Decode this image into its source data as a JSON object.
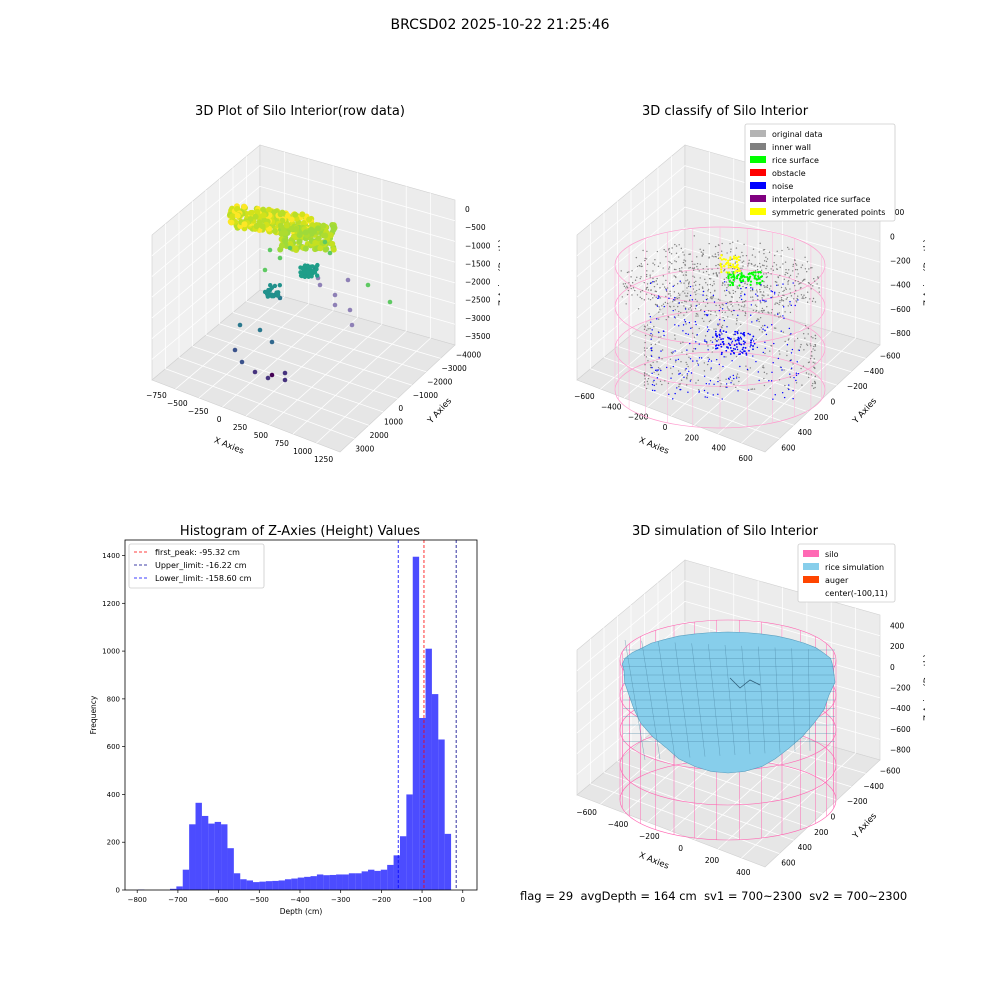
{
  "figure": {
    "suptitle": "BRCSD02 2025-10-22 21:25:46",
    "footer": {
      "flag": "flag = 29",
      "avg_depth": "avgDepth = 164 cm",
      "sv1": "sv1 = 700~2300",
      "sv2": "sv2 = 700~2300"
    }
  },
  "chart_data": [
    {
      "type": "scatter",
      "projection": "3d",
      "title": "3D Plot of Silo Interior(row data)",
      "xlabel": "X Axies",
      "ylabel": "Y Axies",
      "zlabel": "Z Axies (Depth)",
      "x_ticks": [
        "−750",
        "−500",
        "−250",
        "0",
        "250",
        "500",
        "750",
        "1000",
        "1250"
      ],
      "y_ticks": [
        "−4000",
        "−3000",
        "−2000",
        "−1000",
        "0",
        "1000",
        "2000",
        "3000"
      ],
      "z_ticks": [
        "0",
        "−500",
        "−1000",
        "−1500",
        "−2000",
        "−2500",
        "−3000",
        "−3500"
      ],
      "colormap": "viridis"
    },
    {
      "type": "scatter",
      "projection": "3d",
      "title": "3D classify of Silo Interior",
      "xlabel": "X Axies",
      "ylabel": "Y Axies",
      "zlabel": "Z Axies (Depth)",
      "x_ticks": [
        "−600",
        "−400",
        "−200",
        "0",
        "200",
        "400",
        "600"
      ],
      "y_ticks": [
        "−600",
        "−400",
        "−200",
        "0",
        "200",
        "400",
        "600"
      ],
      "z_ticks": [
        "200",
        "0",
        "−200",
        "−400",
        "−600",
        "−800"
      ],
      "legend_position": "top-right",
      "legend": [
        {
          "name": "original data",
          "color": "#b4b4b4"
        },
        {
          "name": "inner wall",
          "color": "#808080"
        },
        {
          "name": "rice surface",
          "color": "#00ff00"
        },
        {
          "name": "obstacle",
          "color": "#ff0000"
        },
        {
          "name": "noise",
          "color": "#0000ff"
        },
        {
          "name": "interpolated rice surface",
          "color": "#800080"
        },
        {
          "name": "symmetric generated points",
          "color": "#ffff00"
        }
      ]
    },
    {
      "type": "bar",
      "title": "Histogram of Z-Axies (Height) Values",
      "xlabel": "Depth (cm)",
      "ylabel": "Frequency",
      "xlim": [
        -830,
        35
      ],
      "ylim": [
        0,
        1465
      ],
      "x_ticks": [
        -800,
        -700,
        -600,
        -500,
        -400,
        -300,
        -200,
        -100,
        0
      ],
      "y_ticks": [
        0,
        200,
        400,
        600,
        800,
        1000,
        1200,
        1400
      ],
      "bin_width": 15.7,
      "bin_start": -798,
      "bar_color": "#0000ff",
      "values": [
        2,
        0,
        0,
        0,
        0,
        5,
        15,
        85,
        275,
        365,
        310,
        278,
        285,
        275,
        175,
        70,
        45,
        40,
        33,
        35,
        37,
        38,
        40,
        45,
        48,
        52,
        55,
        58,
        65,
        62,
        63,
        65,
        65,
        70,
        70,
        78,
        85,
        80,
        85,
        105,
        145,
        225,
        400,
        1395,
        720,
        1010,
        820,
        630,
        235
      ],
      "lines": [
        {
          "label": "first_peak: -95.32 cm",
          "x": -95.32,
          "color": "#ff0000"
        },
        {
          "label": "Upper_limit: -16.22 cm",
          "x": -16.22,
          "color": "#00008b"
        },
        {
          "label": "Lower_limit: -158.60 cm",
          "x": -158.6,
          "color": "#0000ff"
        }
      ],
      "legend_position": "top-left"
    },
    {
      "type": "surface",
      "projection": "3d",
      "title": "3D simulation of Silo Interior",
      "xlabel": "X Axies",
      "ylabel": "Y Axies",
      "zlabel": "Z Axies (Depth)",
      "x_ticks": [
        "−600",
        "−400",
        "−200",
        "0",
        "200",
        "400"
      ],
      "y_ticks": [
        "−600",
        "−400",
        "−200",
        "0",
        "200",
        "400",
        "600"
      ],
      "z_ticks": [
        "400",
        "200",
        "0",
        "−200",
        "−400",
        "−600",
        "−800"
      ],
      "legend_position": "top-right",
      "legend": [
        {
          "name": "silo",
          "color": "#ff69b4"
        },
        {
          "name": "rice simulation",
          "color": "#87ceeb"
        },
        {
          "name": "auger",
          "color": "#ff4500"
        },
        {
          "name": "center(-100,11)",
          "color": ""
        }
      ]
    }
  ]
}
